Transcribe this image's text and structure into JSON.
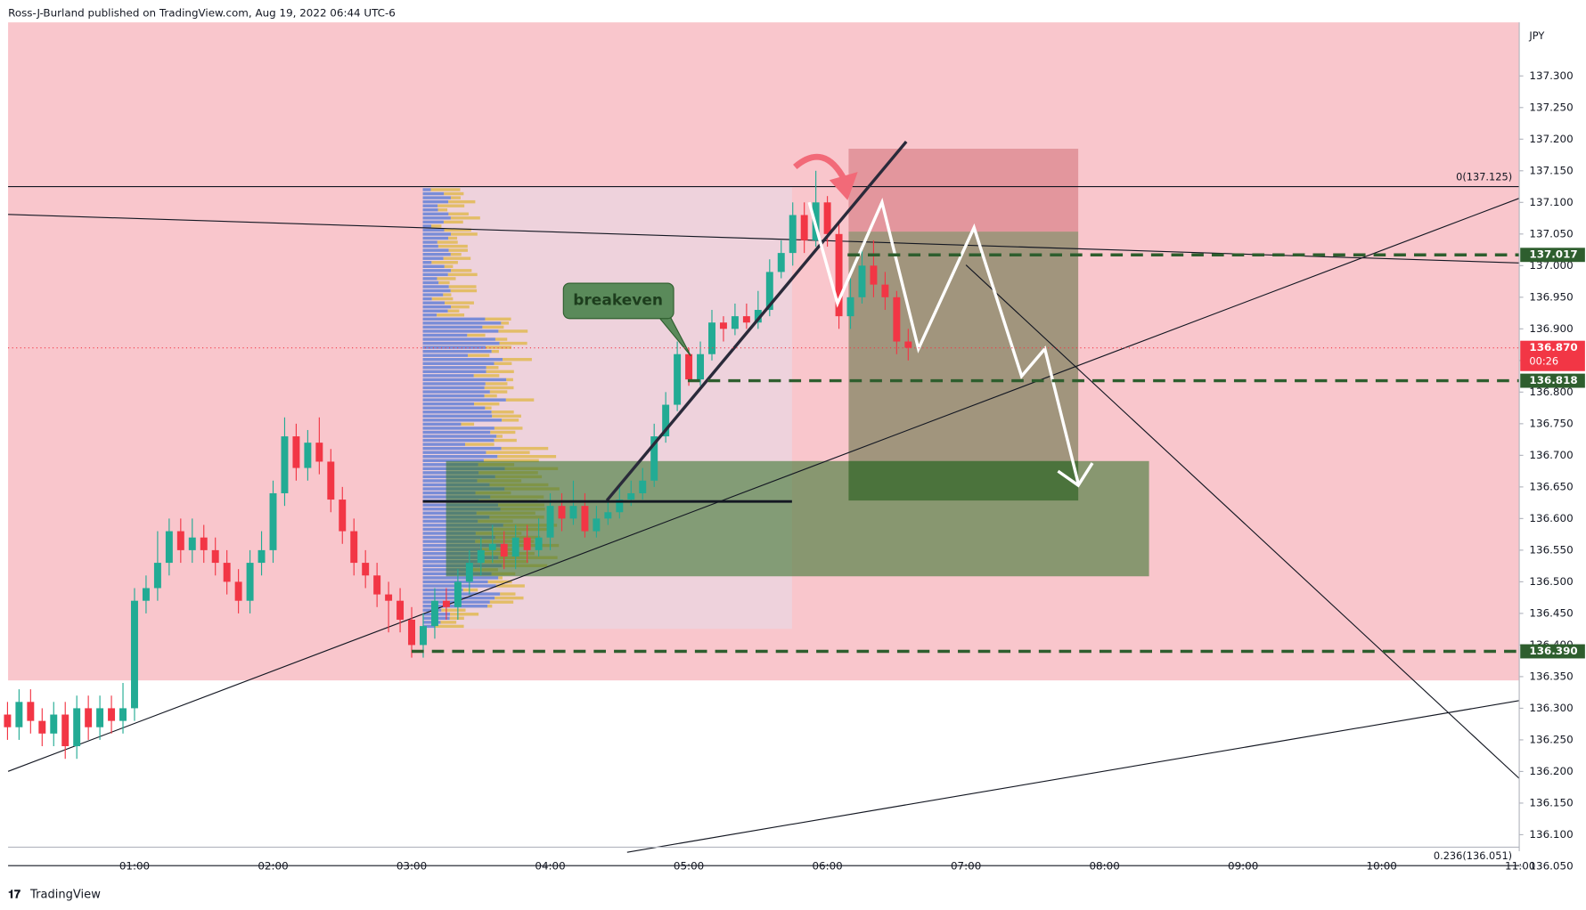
{
  "chart_data": {
    "type": "candlestick",
    "title": "Ross-J-Burland published on TradingView.com, Aug 19, 2022 06:44 UTC-6",
    "footer": "TradingView",
    "y_unit": "JPY",
    "annotation": "breakeven",
    "countdown": "00:26",
    "up_color": "#22ab94",
    "down_color": "#f23645",
    "ylim": [
      136.0355,
      137.3847
    ],
    "yticks": [
      {
        "value": 137.3,
        "label": "137.300"
      },
      {
        "value": 137.25,
        "label": "137.250"
      },
      {
        "value": 137.2,
        "label": "137.200"
      },
      {
        "value": 137.15,
        "label": "137.150"
      },
      {
        "value": 137.1,
        "label": "137.100"
      },
      {
        "value": 137.05,
        "label": "137.050"
      },
      {
        "value": 137.0,
        "label": "137.000"
      },
      {
        "value": 136.95,
        "label": "136.950"
      },
      {
        "value": 136.9,
        "label": "136.900"
      },
      {
        "value": 136.85,
        "label": "136.850"
      },
      {
        "value": 136.8,
        "label": "136.800"
      },
      {
        "value": 136.75,
        "label": "136.750"
      },
      {
        "value": 136.7,
        "label": "136.700"
      },
      {
        "value": 136.65,
        "label": "136.650"
      },
      {
        "value": 136.6,
        "label": "136.600"
      },
      {
        "value": 136.55,
        "label": "136.550"
      },
      {
        "value": 136.5,
        "label": "136.500"
      },
      {
        "value": 136.45,
        "label": "136.450"
      },
      {
        "value": 136.4,
        "label": "136.400"
      },
      {
        "value": 136.35,
        "label": "136.350"
      },
      {
        "value": 136.3,
        "label": "136.300"
      },
      {
        "value": 136.25,
        "label": "136.250"
      },
      {
        "value": 136.2,
        "label": "136.200"
      },
      {
        "value": 136.15,
        "label": "136.150"
      },
      {
        "value": 136.1,
        "label": "136.100"
      },
      {
        "value": 136.05,
        "label": "136.050"
      }
    ],
    "x_labels": [
      "01:00",
      "02:00",
      "03:00",
      "04:00",
      "05:00",
      "06:00",
      "07:00",
      "08:00",
      "09:00",
      "10:00",
      "11:00"
    ],
    "open": [
      136.29,
      136.27,
      136.31,
      136.28,
      136.26,
      136.29,
      136.24,
      136.3,
      136.27,
      136.3,
      136.28,
      136.3,
      136.47,
      136.49,
      136.53,
      136.58,
      136.55,
      136.57,
      136.55,
      136.53,
      136.5,
      136.47,
      136.53,
      136.55,
      136.64,
      136.73,
      136.68,
      136.72,
      136.69,
      136.63,
      136.58,
      136.53,
      136.51,
      136.48,
      136.47,
      136.44,
      136.4,
      136.43,
      136.47,
      136.46,
      136.5,
      136.53,
      136.55,
      136.56,
      136.54,
      136.57,
      136.55,
      136.57,
      136.62,
      136.6,
      136.62,
      136.58,
      136.6,
      136.61,
      136.63,
      136.64,
      136.66,
      136.73,
      136.78,
      136.86,
      136.82,
      136.86,
      136.91,
      136.9,
      136.92,
      136.91,
      136.93,
      136.99,
      137.02,
      137.08,
      137.04,
      137.1,
      137.05,
      136.92,
      136.95,
      137.0,
      136.97,
      136.95,
      136.88
    ],
    "high": [
      136.31,
      136.33,
      136.33,
      136.3,
      136.31,
      136.31,
      136.32,
      136.32,
      136.32,
      136.32,
      136.34,
      136.49,
      136.51,
      136.58,
      136.6,
      136.6,
      136.6,
      136.59,
      136.57,
      136.55,
      136.52,
      136.55,
      136.58,
      136.66,
      136.76,
      136.75,
      136.74,
      136.76,
      136.71,
      136.65,
      136.6,
      136.55,
      136.53,
      136.5,
      136.49,
      136.46,
      136.45,
      136.49,
      136.49,
      136.52,
      136.55,
      136.57,
      136.59,
      136.58,
      136.59,
      136.59,
      136.6,
      136.64,
      136.64,
      136.66,
      136.64,
      136.62,
      136.63,
      136.65,
      136.66,
      136.68,
      136.75,
      136.8,
      136.88,
      136.87,
      136.88,
      136.93,
      136.92,
      136.94,
      136.94,
      136.96,
      137.01,
      137.04,
      137.1,
      137.1,
      137.15,
      137.11,
      137.07,
      136.98,
      137.03,
      137.04,
      136.99,
      136.96,
      136.9
    ],
    "low": [
      136.25,
      136.25,
      136.26,
      136.24,
      136.24,
      136.22,
      136.22,
      136.25,
      136.25,
      136.26,
      136.26,
      136.28,
      136.45,
      136.47,
      136.51,
      136.53,
      136.53,
      136.53,
      136.51,
      136.48,
      136.45,
      136.45,
      136.51,
      136.53,
      136.62,
      136.66,
      136.66,
      136.67,
      136.61,
      136.56,
      136.51,
      136.49,
      136.46,
      136.42,
      136.42,
      136.38,
      136.38,
      136.41,
      136.44,
      136.44,
      136.48,
      136.51,
      136.53,
      136.52,
      136.52,
      136.53,
      136.54,
      136.55,
      136.58,
      136.59,
      136.57,
      136.57,
      136.59,
      136.6,
      136.62,
      136.63,
      136.65,
      136.72,
      136.77,
      136.81,
      136.81,
      136.85,
      136.88,
      136.89,
      136.9,
      136.9,
      136.92,
      136.98,
      137.0,
      137.02,
      137.03,
      137.03,
      136.9,
      136.9,
      136.94,
      136.95,
      136.93,
      136.86,
      136.85
    ],
    "close": [
      136.27,
      136.31,
      136.28,
      136.26,
      136.29,
      136.24,
      136.3,
      136.27,
      136.3,
      136.28,
      136.3,
      136.47,
      136.49,
      136.53,
      136.58,
      136.55,
      136.57,
      136.55,
      136.53,
      136.5,
      136.47,
      136.53,
      136.55,
      136.64,
      136.73,
      136.68,
      136.72,
      136.69,
      136.63,
      136.58,
      136.53,
      136.51,
      136.48,
      136.47,
      136.44,
      136.4,
      136.43,
      136.47,
      136.46,
      136.5,
      136.53,
      136.55,
      136.56,
      136.54,
      136.57,
      136.55,
      136.57,
      136.62,
      136.6,
      136.62,
      136.58,
      136.6,
      136.61,
      136.63,
      136.64,
      136.66,
      136.73,
      136.78,
      136.86,
      136.82,
      136.86,
      136.91,
      136.9,
      136.92,
      136.91,
      136.93,
      136.99,
      137.02,
      137.08,
      137.04,
      137.1,
      137.05,
      136.92,
      136.95,
      137.0,
      136.97,
      136.95,
      136.88,
      136.87
    ],
    "price_labels": [
      {
        "value": 137.017,
        "label": "137.017",
        "color": "#2e5e2e"
      },
      {
        "value": 136.87,
        "label": "136.870",
        "color": "#f23645"
      },
      {
        "value": 136.818,
        "label": "136.818",
        "color": "#2e5e2e"
      },
      {
        "value": 136.39,
        "label": "136.390",
        "color": "#2e5e2e"
      }
    ],
    "fib_levels": [
      {
        "value": 137.125,
        "label": "0(137.125)"
      },
      {
        "value": 136.051,
        "label": "0.236(136.051)"
      }
    ]
  }
}
